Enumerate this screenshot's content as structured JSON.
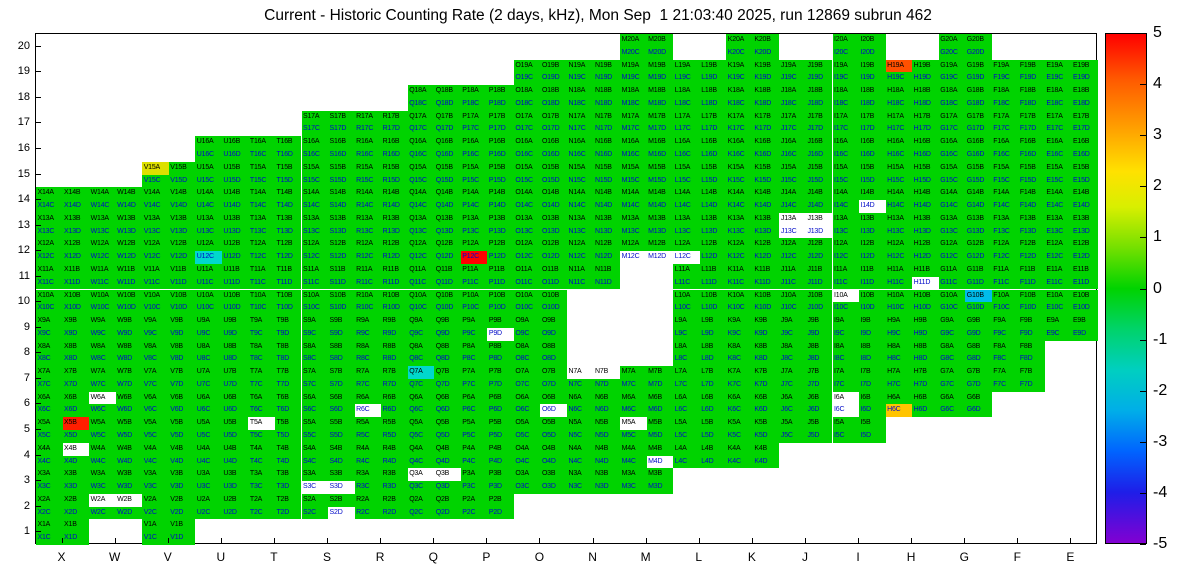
{
  "title": "Current - Historic Counting Rate (2 days, kHz), Mon Sep  1 21:03:40 2025, run 12869 subrun 462",
  "chart_data": {
    "type": "heatmap",
    "x_axis": {
      "labels": [
        "X",
        "W",
        "V",
        "U",
        "T",
        "S",
        "R",
        "Q",
        "P",
        "O",
        "N",
        "M",
        "L",
        "K",
        "J",
        "I",
        "H",
        "G",
        "F",
        "E"
      ]
    },
    "y_axis": {
      "labels": [
        20,
        19,
        18,
        17,
        16,
        15,
        14,
        13,
        12,
        11,
        10,
        9,
        8,
        7,
        6,
        5,
        4,
        3,
        2,
        1
      ]
    },
    "cell_suffixes": [
      "A",
      "B",
      "C",
      "D"
    ],
    "colorbar": {
      "min": -5,
      "max": 5,
      "ticks": [
        5,
        4,
        3,
        2,
        1,
        0,
        -1,
        -2,
        -3,
        -4,
        -5
      ],
      "gradient": [
        {
          "pos": 0.0,
          "color": "#ff0000"
        },
        {
          "pos": 0.09,
          "color": "#ff5a00"
        },
        {
          "pos": 0.18,
          "color": "#ff9c00"
        },
        {
          "pos": 0.27,
          "color": "#ffe100"
        },
        {
          "pos": 0.34,
          "color": "#d8ef00"
        },
        {
          "pos": 0.42,
          "color": "#74e000"
        },
        {
          "pos": 0.5,
          "color": "#00d300"
        },
        {
          "pos": 0.58,
          "color": "#00d36a"
        },
        {
          "pos": 0.66,
          "color": "#00cfc0"
        },
        {
          "pos": 0.74,
          "color": "#00aee8"
        },
        {
          "pos": 0.82,
          "color": "#0064ff"
        },
        {
          "pos": 0.9,
          "color": "#1e1ee8"
        },
        {
          "pos": 1.0,
          "color": "#8200d2"
        }
      ]
    },
    "default_color": "#00d300",
    "no_data_color": "#ffffff",
    "occupancy": [
      {
        "row": 20,
        "cols": [
          "M",
          "K",
          "I",
          "G"
        ]
      },
      {
        "row": 19,
        "range": [
          "O",
          "E"
        ]
      },
      {
        "row": 18,
        "range": [
          "Q",
          "E"
        ]
      },
      {
        "row": 17,
        "range": [
          "S",
          "E"
        ]
      },
      {
        "row": 16,
        "range": [
          "U",
          "E"
        ]
      },
      {
        "row": 15,
        "range": [
          "V",
          "E"
        ]
      },
      {
        "row": 14,
        "range": [
          "X",
          "E"
        ]
      },
      {
        "row": 13,
        "range": [
          "X",
          "E"
        ]
      },
      {
        "row": 12,
        "range": [
          "X",
          "E"
        ]
      },
      {
        "row": 11,
        "range": [
          "X",
          "E"
        ],
        "exclude": [
          "M"
        ]
      },
      {
        "row": 10,
        "range": [
          "X",
          "E"
        ],
        "exclude": [
          "N",
          "M"
        ]
      },
      {
        "row": 9,
        "range": [
          "X",
          "E"
        ],
        "exclude": [
          "N",
          "M"
        ]
      },
      {
        "row": 8,
        "range": [
          "X",
          "F"
        ],
        "exclude": [
          "N",
          "M"
        ]
      },
      {
        "row": 7,
        "range": [
          "X",
          "F"
        ]
      },
      {
        "row": 6,
        "range": [
          "X",
          "G"
        ]
      },
      {
        "row": 5,
        "range": [
          "X",
          "I"
        ]
      },
      {
        "row": 4,
        "range": [
          "X",
          "K"
        ]
      },
      {
        "row": 3,
        "range": [
          "X",
          "M"
        ]
      },
      {
        "row": 2,
        "range": [
          "X",
          "P"
        ]
      },
      {
        "row": 1,
        "cols": [
          "X",
          "V"
        ]
      }
    ],
    "overrides": {
      "H19A": "#ff5000",
      "V15A": "#dde000",
      "U12C": "#00d8cc",
      "P12C": "#ff0000",
      "G10B": "#00bcea",
      "Q7A": "#00d8cc",
      "H6C": "#ffc400",
      "X5B": "#ff1e00",
      "I14D": "#ffffff",
      "J13A": "#ffffff",
      "J13B": "#ffffff",
      "J13C": "#ffffff",
      "J13D": "#ffffff",
      "M12C": "#ffffff",
      "M12D": "#ffffff",
      "L12C": "#ffffff",
      "H11D": "#ffffff",
      "I10A": "#ffffff",
      "P9D": "#ffffff",
      "N7A": "#ffffff",
      "N7B": "#ffffff",
      "W6A": "#ffffff",
      "R6C": "#ffffff",
      "O6D": "#ffffff",
      "I6A": "#ffffff",
      "I6C": "#ffffff",
      "M5A": "#ffffff",
      "T5A": "#ffffff",
      "X4B": "#ffffff",
      "M4D": "#ffffff",
      "Q3A": "#ffffff",
      "Q3B": "#ffffff",
      "S3C": "#ffffff",
      "S3D": "#ffffff",
      "W2A": "#ffffff",
      "W2B": "#ffffff",
      "S2D": "#ffffff"
    }
  },
  "colors": {
    "ab_text": "#000000",
    "cd_text": "#0009c8",
    "frame": "#000000",
    "background": "#ffffff"
  }
}
